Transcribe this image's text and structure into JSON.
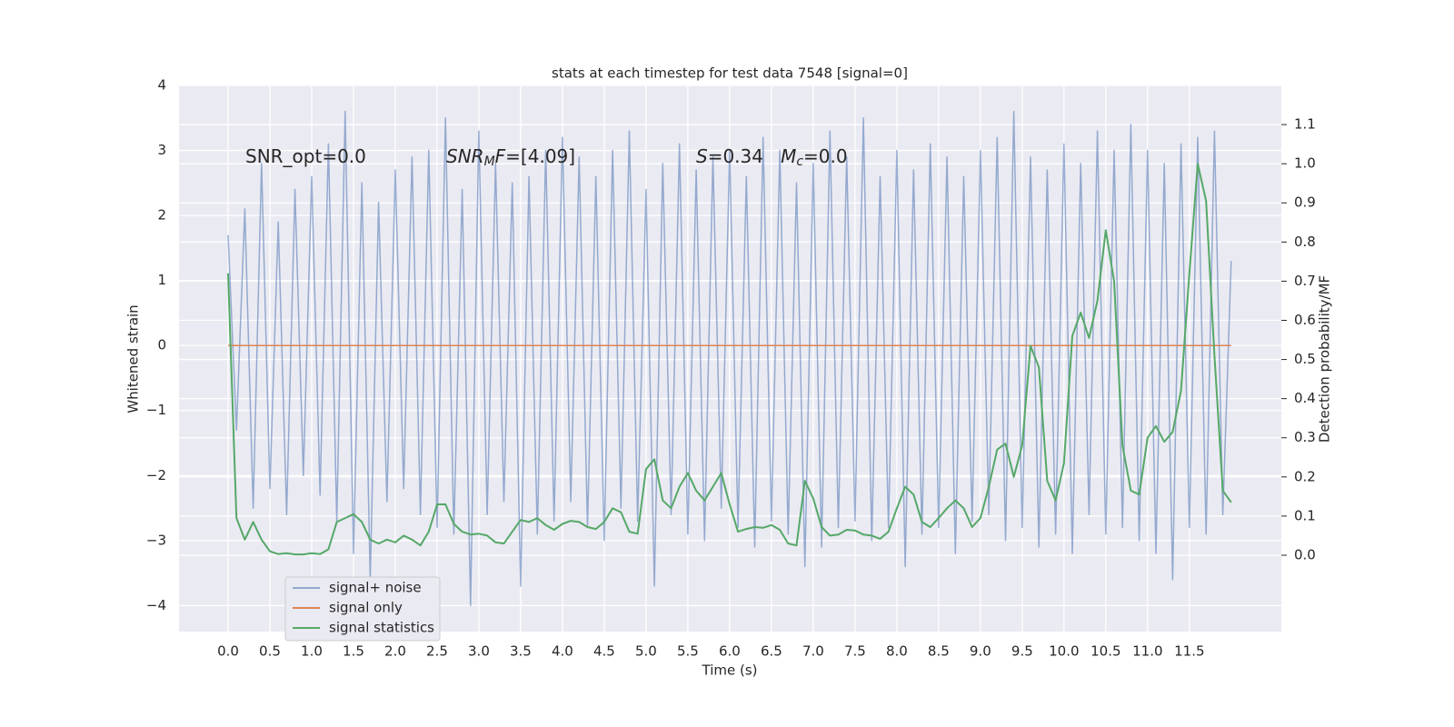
{
  "chart_data": {
    "type": "line",
    "title": "stats at each timestep for test data 7548 [signal=0]",
    "xlabel": "Time (s)",
    "ylabel": "Whitened strain",
    "y2label": "Detection probability/MF",
    "x": [
      0.0,
      0.1,
      0.2,
      0.3,
      0.4,
      0.5,
      0.6,
      0.7,
      0.8,
      0.9,
      1.0,
      1.1,
      1.2,
      1.3,
      1.4,
      1.5,
      1.6,
      1.7,
      1.8,
      1.9,
      2.0,
      2.1,
      2.2,
      2.3,
      2.4,
      2.5,
      2.6,
      2.7,
      2.8,
      2.9,
      3.0,
      3.1,
      3.2,
      3.3,
      3.4,
      3.5,
      3.6,
      3.7,
      3.8,
      3.9,
      4.0,
      4.1,
      4.2,
      4.3,
      4.4,
      4.5,
      4.6,
      4.7,
      4.8,
      4.9,
      5.0,
      5.1,
      5.2,
      5.3,
      5.4,
      5.5,
      5.6,
      5.7,
      5.8,
      5.9,
      6.0,
      6.1,
      6.2,
      6.3,
      6.4,
      6.5,
      6.6,
      6.7,
      6.8,
      6.9,
      7.0,
      7.1,
      7.2,
      7.3,
      7.4,
      7.5,
      7.6,
      7.7,
      7.8,
      7.9,
      8.0,
      8.1,
      8.2,
      8.3,
      8.4,
      8.5,
      8.6,
      8.7,
      8.8,
      8.9,
      9.0,
      9.1,
      9.2,
      9.3,
      9.4,
      9.5,
      9.6,
      9.7,
      9.8,
      9.9,
      10.0,
      10.1,
      10.2,
      10.3,
      10.4,
      10.5,
      10.6,
      10.7,
      10.8,
      10.9,
      11.0,
      11.1,
      11.2,
      11.3,
      11.4,
      11.5,
      11.6,
      11.7,
      11.8,
      11.9,
      12.0
    ],
    "series": [
      {
        "name": "signal+ noise",
        "color": "#4c72b0",
        "opacity": 0.55,
        "values": [
          1.7,
          -1.3,
          2.1,
          -2.5,
          2.8,
          -2.2,
          1.9,
          -2.6,
          2.4,
          -2.0,
          2.6,
          -2.3,
          3.1,
          -2.7,
          3.6,
          -3.2,
          2.5,
          -3.6,
          2.2,
          -2.4,
          2.7,
          -2.2,
          2.9,
          -2.6,
          3.0,
          -2.8,
          3.5,
          -2.9,
          2.4,
          -4.0,
          3.3,
          -2.6,
          2.8,
          -2.4,
          2.5,
          -3.7,
          2.6,
          -2.9,
          3.0,
          -2.7,
          3.2,
          -2.4,
          2.9,
          -2.8,
          2.6,
          -3.0,
          3.0,
          -2.5,
          3.3,
          -2.7,
          2.4,
          -3.7,
          2.8,
          -2.6,
          3.1,
          -2.9,
          2.7,
          -3.0,
          2.9,
          -2.5,
          3.0,
          -2.8,
          2.6,
          -3.1,
          3.2,
          -2.7,
          3.0,
          -2.9,
          2.5,
          -3.4,
          2.8,
          -3.1,
          3.3,
          -2.8,
          2.9,
          -2.7,
          3.5,
          -3.0,
          2.6,
          -2.8,
          3.0,
          -3.4,
          2.7,
          -2.9,
          3.1,
          -2.8,
          2.9,
          -3.2,
          2.6,
          -2.7,
          3.0,
          -2.6,
          3.2,
          -3.0,
          3.6,
          -2.8,
          2.9,
          -3.1,
          2.7,
          -2.9,
          3.1,
          -3.2,
          2.8,
          -2.6,
          3.3,
          -2.9,
          3.0,
          -2.8,
          3.4,
          -3.0,
          3.0,
          -3.2,
          2.8,
          -3.6,
          3.1,
          -2.8,
          3.2,
          -2.9,
          3.3,
          -2.6,
          1.3
        ]
      },
      {
        "name": "signal only",
        "color": "#dd8452",
        "opacity": 1,
        "values": [
          0,
          0,
          0,
          0,
          0,
          0,
          0,
          0,
          0,
          0,
          0,
          0,
          0,
          0,
          0,
          0,
          0,
          0,
          0,
          0,
          0,
          0,
          0,
          0,
          0,
          0,
          0,
          0,
          0,
          0,
          0,
          0,
          0,
          0,
          0,
          0,
          0,
          0,
          0,
          0,
          0,
          0,
          0,
          0,
          0,
          0,
          0,
          0,
          0,
          0,
          0,
          0,
          0,
          0,
          0,
          0,
          0,
          0,
          0,
          0,
          0,
          0,
          0,
          0,
          0,
          0,
          0,
          0,
          0,
          0,
          0,
          0,
          0,
          0,
          0,
          0,
          0,
          0,
          0,
          0,
          0,
          0,
          0,
          0,
          0,
          0,
          0,
          0,
          0,
          0,
          0,
          0,
          0,
          0,
          0,
          0,
          0,
          0,
          0,
          0,
          0,
          0,
          0,
          0,
          0,
          0,
          0,
          0,
          0,
          0,
          0,
          0,
          0,
          0,
          0,
          0,
          0,
          0,
          0,
          0,
          0
        ]
      },
      {
        "name": "signal statistics",
        "color": "#55a868",
        "opacity": 1,
        "axis": "y2",
        "values": [
          0.72,
          0.095,
          0.04,
          0.085,
          0.04,
          0.01,
          0.003,
          0.005,
          0.002,
          0.002,
          0.005,
          0.003,
          0.015,
          0.085,
          0.095,
          0.105,
          0.085,
          0.04,
          0.03,
          0.04,
          0.033,
          0.05,
          0.04,
          0.025,
          0.06,
          0.13,
          0.13,
          0.08,
          0.06,
          0.053,
          0.055,
          0.05,
          0.033,
          0.03,
          0.06,
          0.09,
          0.085,
          0.095,
          0.077,
          0.065,
          0.08,
          0.088,
          0.085,
          0.072,
          0.067,
          0.085,
          0.12,
          0.11,
          0.06,
          0.055,
          0.22,
          0.245,
          0.14,
          0.12,
          0.175,
          0.21,
          0.165,
          0.14,
          0.175,
          0.21,
          0.13,
          0.06,
          0.067,
          0.072,
          0.07,
          0.077,
          0.065,
          0.03,
          0.025,
          0.19,
          0.145,
          0.072,
          0.05,
          0.053,
          0.065,
          0.063,
          0.053,
          0.05,
          0.042,
          0.06,
          0.12,
          0.175,
          0.155,
          0.085,
          0.072,
          0.095,
          0.12,
          0.14,
          0.12,
          0.072,
          0.095,
          0.175,
          0.27,
          0.285,
          0.2,
          0.28,
          0.535,
          0.48,
          0.19,
          0.14,
          0.235,
          0.56,
          0.62,
          0.555,
          0.65,
          0.83,
          0.7,
          0.28,
          0.165,
          0.155,
          0.3,
          0.33,
          0.29,
          0.315,
          0.42,
          0.72,
          1.0,
          0.905,
          0.51,
          0.165,
          0.135
        ]
      }
    ],
    "xlim": [
      -0.587,
      12.6
    ],
    "ylim": [
      -4.4,
      4.0
    ],
    "y2lim": [
      -0.195,
      1.2
    ],
    "xticks": [
      {
        "value": 0,
        "label": "0.0"
      },
      0.5,
      {
        "value": 1,
        "label": "1.0"
      },
      1.5,
      {
        "value": 2,
        "label": "2.0"
      },
      2.5,
      {
        "value": 3,
        "label": "3.0"
      },
      3.5,
      {
        "value": 4,
        "label": "4.0"
      },
      4.5,
      {
        "value": 5,
        "label": "5.0"
      },
      5.5,
      {
        "value": 6,
        "label": "6.0"
      },
      6.5,
      {
        "value": 7,
        "label": "7.0"
      },
      7.5,
      {
        "value": 8,
        "label": "8.0"
      },
      8.5,
      {
        "value": 9,
        "label": "9.0"
      },
      9.5,
      {
        "value": 10,
        "label": "10.0"
      },
      10.5,
      {
        "value": 11,
        "label": "11.0"
      },
      11.5
    ],
    "yticks": [
      {
        "value": -4,
        "label": "−4"
      },
      {
        "value": -3,
        "label": "−3"
      },
      {
        "value": -2,
        "label": "−2"
      },
      {
        "value": -1,
        "label": "−1"
      },
      0,
      1,
      2,
      3,
      4
    ],
    "y2ticks": [
      {
        "value": 0,
        "label": "0.0"
      },
      0.1,
      0.2,
      0.3,
      0.4,
      0.5,
      0.6,
      0.7,
      0.8,
      0.9,
      {
        "value": 1,
        "label": "1.0"
      },
      1.1
    ],
    "grid": true,
    "legend": "lower left",
    "annotations": [
      [
        {
          "text": "SNR_opt=0.0"
        }
      ],
      [
        {
          "text": "SNR",
          "italic": true
        },
        {
          "text": "M",
          "italic": true,
          "sub": true
        },
        {
          "text": "F",
          "italic": true
        },
        {
          "text": "=[4.09]"
        }
      ],
      [
        {
          "text": "S",
          "italic": true
        },
        {
          "text": "=0.34   "
        },
        {
          "text": "M",
          "italic": true
        },
        {
          "text": "c",
          "italic": true,
          "sub": true
        },
        {
          "text": "=0.0"
        }
      ]
    ]
  }
}
